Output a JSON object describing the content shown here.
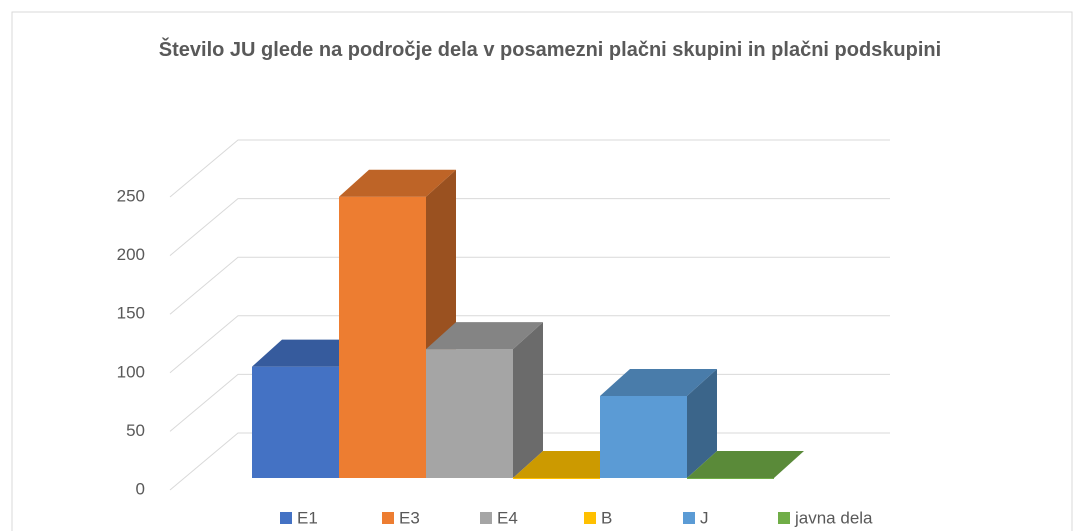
{
  "chart_data": {
    "type": "bar3d",
    "title": "Število JU glede na področje dela v posamezni plačni skupini in plačni podskupini",
    "series": [
      {
        "name": "E1",
        "color": "#4472c4",
        "values": [
          95
        ]
      },
      {
        "name": "E3",
        "color": "#ed7d31",
        "values": [
          240
        ]
      },
      {
        "name": "E4",
        "color": "#a5a5a5",
        "values": [
          110
        ]
      },
      {
        "name": "B",
        "color": "#ffc000",
        "values": [
          0
        ]
      },
      {
        "name": "J",
        "color": "#5b9bd5",
        "values": [
          70
        ]
      },
      {
        "name": "javna dela",
        "color": "#70ad47",
        "values": [
          0
        ]
      }
    ],
    "ylim": [
      0,
      250
    ],
    "yticks": [
      0,
      50,
      100,
      150,
      200,
      250
    ],
    "grid": true,
    "legend": "bottom"
  }
}
